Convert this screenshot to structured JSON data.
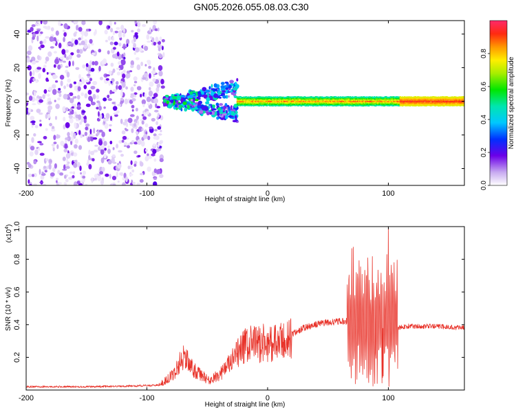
{
  "title": "GN05.2026.055.08.03.C30",
  "chart_data": [
    {
      "type": "heatmap",
      "xlabel": "Height of straight line (km)",
      "ylabel": "Frequency (Hz)",
      "xlim": [
        -200,
        163
      ],
      "ylim": [
        -50,
        48
      ],
      "x_ticks": [
        -200,
        -100,
        0,
        100
      ],
      "y_ticks": [
        -40,
        -20,
        0,
        20,
        40
      ],
      "colorbar": {
        "label": "Normalized spectral amplitude",
        "range": [
          0,
          1
        ],
        "ticks": [
          0.0,
          0.2,
          0.4,
          0.6,
          0.8
        ]
      },
      "regions": [
        {
          "x_range": [
            -200,
            -86
          ],
          "freq_range": [
            -50,
            48
          ],
          "amplitude": [
            0.02,
            0.2
          ],
          "pattern": "scattered noise"
        },
        {
          "x_range": [
            -86,
            -25
          ],
          "freq_range": [
            -12,
            12
          ],
          "amplitude": [
            0.1,
            0.6
          ],
          "pattern": "diverging branches"
        },
        {
          "x_range": [
            -25,
            110
          ],
          "freq_range": [
            -3,
            3
          ],
          "amplitude": [
            0.3,
            0.9
          ],
          "pattern": "narrow band at 0 Hz"
        },
        {
          "x_range": [
            110,
            163
          ],
          "freq_range": [
            -2,
            2
          ],
          "amplitude": [
            0.7,
            0.95
          ],
          "pattern": "narrow band at 0 Hz"
        }
      ]
    },
    {
      "type": "line",
      "xlabel": "Height of straight line (km)",
      "ylabel": "SNR (10 * v/v)",
      "y_multiplier": "(x10",
      "y_multiplier_exp": "4",
      "y_multiplier_close": ")",
      "xlim": [
        -200,
        163
      ],
      "ylim": [
        0,
        1.0
      ],
      "x_ticks": [
        -200,
        -100,
        0,
        100
      ],
      "y_ticks": [
        0.2,
        0.4,
        0.6,
        0.8,
        1.0
      ],
      "series": [
        {
          "color": "#e8332a",
          "envelope": [
            {
              "x": -200,
              "y": 0.02
            },
            {
              "x": -150,
              "y": 0.02
            },
            {
              "x": -110,
              "y": 0.025
            },
            {
              "x": -90,
              "y": 0.03
            },
            {
              "x": -78,
              "y": 0.1
            },
            {
              "x": -70,
              "y": 0.22
            },
            {
              "x": -60,
              "y": 0.12
            },
            {
              "x": -48,
              "y": 0.06
            },
            {
              "x": -40,
              "y": 0.1
            },
            {
              "x": -30,
              "y": 0.18
            },
            {
              "x": -20,
              "y": 0.28
            },
            {
              "x": -10,
              "y": 0.3
            },
            {
              "x": 0,
              "y": 0.3
            },
            {
              "x": 10,
              "y": 0.3
            },
            {
              "x": 20,
              "y": 0.34
            },
            {
              "x": 30,
              "y": 0.38
            },
            {
              "x": 45,
              "y": 0.41
            },
            {
              "x": 60,
              "y": 0.42
            },
            {
              "x": 68,
              "y": 0.42
            },
            {
              "x": 75,
              "y": 0.38
            },
            {
              "x": 85,
              "y": 0.3
            },
            {
              "x": 100,
              "y": 0.28
            },
            {
              "x": 107,
              "y": 0.38
            },
            {
              "x": 115,
              "y": 0.39
            },
            {
              "x": 140,
              "y": 0.39
            },
            {
              "x": 163,
              "y": 0.38
            }
          ],
          "peak": {
            "x": 100,
            "y": 1.0
          }
        }
      ]
    }
  ]
}
